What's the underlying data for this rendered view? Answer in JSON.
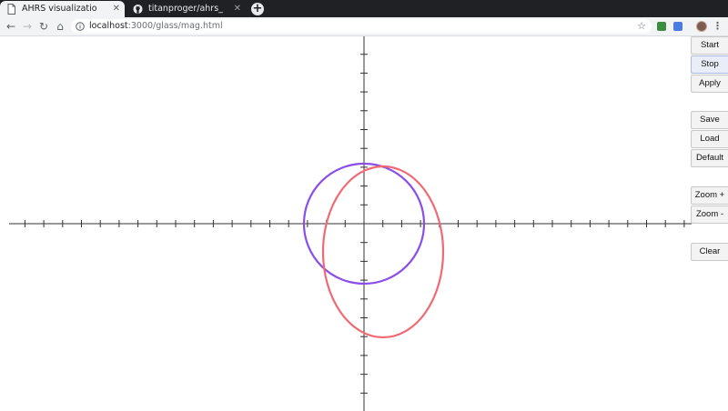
{
  "browser": {
    "tabs": [
      {
        "title": "AHRS visualization examp",
        "active": true,
        "icon": "document-icon"
      },
      {
        "title": "titanproger/ahrs_web_vi",
        "active": false,
        "icon": "github-icon"
      }
    ],
    "close_glyph": "✕",
    "new_tab_glyph": "+",
    "url_host": "localhost",
    "url_path": ":3000/glass/mag.html",
    "bookmark_glyph": "☆",
    "menu_glyph": "⋮",
    "nav": {
      "back": "←",
      "forward": "→",
      "reload": "↻",
      "home": "⌂"
    }
  },
  "controls": {
    "start": "Start",
    "stop": "Stop",
    "apply": "Apply",
    "save": "Save",
    "load": "Load",
    "default": "Default",
    "zoom_in": "Zoom +",
    "zoom_out": "Zoom -",
    "clear": "Clear"
  },
  "colors": {
    "axis": "#333333",
    "purple_ellipse": "#8a4fe8",
    "red_ellipse": "#f06a74",
    "tab_strip": "#202124",
    "toolbar": "#f1f3f4"
  }
}
